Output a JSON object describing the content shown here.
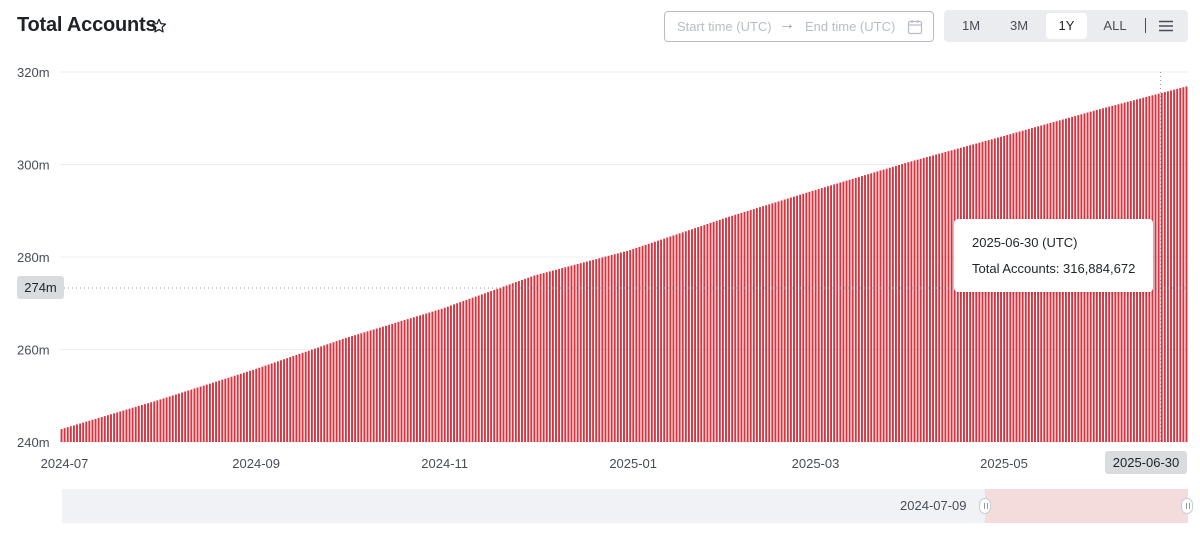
{
  "header": {
    "title": "Total Accounts",
    "star_icon": "star-outline-icon",
    "start_placeholder": "Start time (UTC)",
    "end_placeholder": "End time (UTC)",
    "arrow": "→",
    "calendar_icon": "calendar-icon",
    "periods": [
      "1M",
      "3M",
      "1Y",
      "ALL"
    ],
    "active_period": "1Y",
    "menu_icon": "hamburger-menu-icon"
  },
  "tooltip": {
    "date": "2025-06-30 (UTC)",
    "label": "Total Accounts:",
    "value": "316,884,672"
  },
  "cursor": {
    "y_label": "274m",
    "x_label": "2025-06-30"
  },
  "navigator": {
    "start_date": "2024-07-09"
  },
  "colors": {
    "bar": "#d9333f",
    "bar_gap": "#ffffff",
    "grid": "#eaecef",
    "nav_selection": "#f4dcdd"
  },
  "chart_data": {
    "type": "bar",
    "title": "Total Accounts",
    "x_start": "2024-07-01",
    "x_end": "2025-06-30",
    "x_ticks": [
      "2024-07",
      "2024-09",
      "2024-11",
      "2025-01",
      "2025-03",
      "2025-05"
    ],
    "ylim": [
      240000000,
      320000000
    ],
    "y_ticks": [
      240000000,
      260000000,
      280000000,
      300000000,
      320000000
    ],
    "y_tick_labels": [
      "240m",
      "260m",
      "280m",
      "300m",
      "320m"
    ],
    "grid": true,
    "legend": "none",
    "series": [
      {
        "name": "Total Accounts",
        "values": [
          {
            "x": "2024-07-01",
            "y": 242800000
          },
          {
            "x": "2024-08-01",
            "y": 249000000
          },
          {
            "x": "2024-09-01",
            "y": 255600000
          },
          {
            "x": "2024-10-01",
            "y": 262500000
          },
          {
            "x": "2024-11-01",
            "y": 268800000
          },
          {
            "x": "2024-12-01",
            "y": 276000000
          },
          {
            "x": "2025-01-01",
            "y": 281500000
          },
          {
            "x": "2025-02-01",
            "y": 288500000
          },
          {
            "x": "2025-03-01",
            "y": 294300000
          },
          {
            "x": "2025-04-01",
            "y": 300500000
          },
          {
            "x": "2025-05-01",
            "y": 306000000
          },
          {
            "x": "2025-06-01",
            "y": 311800000
          },
          {
            "x": "2025-06-30",
            "y": 316884672
          }
        ]
      }
    ]
  }
}
